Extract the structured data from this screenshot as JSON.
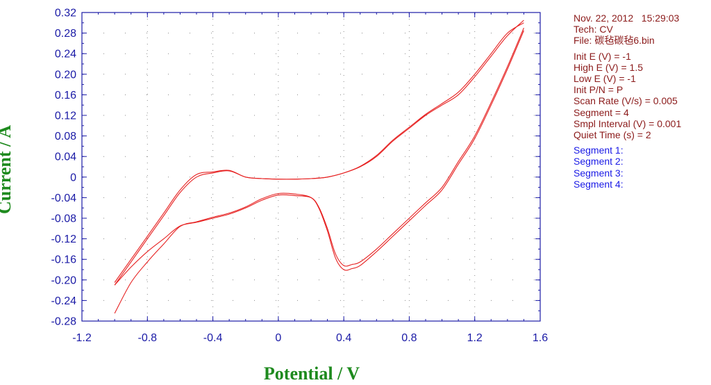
{
  "chart_data": {
    "type": "line",
    "xlabel": "Potential / V",
    "ylabel": "Current / A",
    "xlim": [
      -1.2,
      1.6
    ],
    "ylim": [
      -0.28,
      0.32
    ],
    "x_ticks": [
      "-1.2",
      "-0.8",
      "-0.4",
      "0",
      "0.4",
      "0.8",
      "1.2",
      "1.6"
    ],
    "y_ticks": [
      "0.32",
      "0.28",
      "0.24",
      "0.20",
      "0.16",
      "0.12",
      "0.08",
      "0.04",
      "0",
      "-0.04",
      "-0.08",
      "-0.12",
      "-0.16",
      "-0.20",
      "-0.24",
      "-0.28"
    ],
    "grid": "dotted",
    "line_color": "#e62020",
    "series": [
      {
        "x": [
          -1.0,
          -0.9,
          -0.8,
          -0.7,
          -0.6,
          -0.5,
          -0.4,
          -0.3,
          -0.2,
          -0.1,
          0.0,
          0.1,
          0.2,
          0.3,
          0.4,
          0.5,
          0.6,
          0.7,
          0.8,
          0.9,
          1.0,
          1.1,
          1.2,
          1.3,
          1.4,
          1.5
        ],
        "y": [
          -0.205,
          -0.16,
          -0.115,
          -0.07,
          -0.025,
          0.005,
          0.01,
          0.013,
          0.0,
          -0.003,
          -0.004,
          -0.004,
          -0.003,
          0.0,
          0.008,
          0.02,
          0.04,
          0.07,
          0.095,
          0.12,
          0.14,
          0.16,
          0.195,
          0.235,
          0.275,
          0.305
        ]
      },
      {
        "x": [
          1.5,
          1.4,
          1.3,
          1.2,
          1.1,
          1.0,
          0.9,
          0.8,
          0.7,
          0.6,
          0.5,
          0.45,
          0.4,
          0.35,
          0.3,
          0.25,
          0.2,
          0.1,
          0.0,
          -0.1,
          -0.2,
          -0.3,
          -0.4,
          -0.5,
          -0.6,
          -0.7,
          -0.8,
          -0.9,
          -1.0
        ],
        "y": [
          0.29,
          0.215,
          0.145,
          0.08,
          0.03,
          -0.02,
          -0.05,
          -0.08,
          -0.11,
          -0.14,
          -0.165,
          -0.17,
          -0.172,
          -0.15,
          -0.1,
          -0.06,
          -0.04,
          -0.036,
          -0.035,
          -0.045,
          -0.06,
          -0.072,
          -0.08,
          -0.088,
          -0.095,
          -0.12,
          -0.145,
          -0.175,
          -0.21
        ]
      },
      {
        "x": [
          -1.0,
          -0.9,
          -0.8,
          -0.7,
          -0.6,
          -0.5,
          -0.4,
          -0.3,
          -0.2,
          -0.1,
          0.0,
          0.1,
          0.2,
          0.3,
          0.4,
          0.5,
          0.6,
          0.7,
          0.8,
          0.9,
          1.0,
          1.1,
          1.2,
          1.3,
          1.4,
          1.5
        ],
        "y": [
          -0.21,
          -0.165,
          -0.12,
          -0.075,
          -0.03,
          0.0,
          0.008,
          0.012,
          0.0,
          -0.003,
          -0.004,
          -0.004,
          -0.003,
          0.0,
          0.008,
          0.021,
          0.042,
          0.072,
          0.097,
          0.122,
          0.143,
          0.165,
          0.2,
          0.24,
          0.28,
          0.3
        ]
      },
      {
        "x": [
          1.5,
          1.4,
          1.3,
          1.2,
          1.1,
          1.0,
          0.9,
          0.8,
          0.7,
          0.6,
          0.5,
          0.45,
          0.4,
          0.35,
          0.3,
          0.25,
          0.2,
          0.1,
          0.0,
          -0.1,
          -0.2,
          -0.3,
          -0.4,
          -0.5,
          -0.6,
          -0.7,
          -0.8,
          -0.9,
          -1.0
        ],
        "y": [
          0.285,
          0.21,
          0.14,
          0.075,
          0.025,
          -0.025,
          -0.055,
          -0.085,
          -0.115,
          -0.145,
          -0.172,
          -0.178,
          -0.18,
          -0.158,
          -0.105,
          -0.062,
          -0.04,
          -0.033,
          -0.032,
          -0.042,
          -0.058,
          -0.07,
          -0.078,
          -0.087,
          -0.096,
          -0.13,
          -0.165,
          -0.205,
          -0.265
        ]
      }
    ]
  },
  "info": {
    "date_line": "Nov. 22, 2012   15:29:03",
    "tech": "Tech: CV",
    "file": "File: 碳毡碳毡6.bin",
    "params": [
      "Init E (V) = -1",
      "High E (V) = 1.5",
      "Low E (V) = -1",
      "Init P/N = P",
      "Scan Rate (V/s) = 0.005",
      "Segment = 4",
      "Smpl Interval (V) = 0.001",
      "Quiet Time (s) = 2"
    ],
    "segments": [
      "Segment 1:",
      "Segment 2:",
      "Segment 3:",
      "Segment 4:"
    ],
    "colors": {
      "params": "#8b1a1a",
      "segments": "#1a1ae6"
    }
  }
}
